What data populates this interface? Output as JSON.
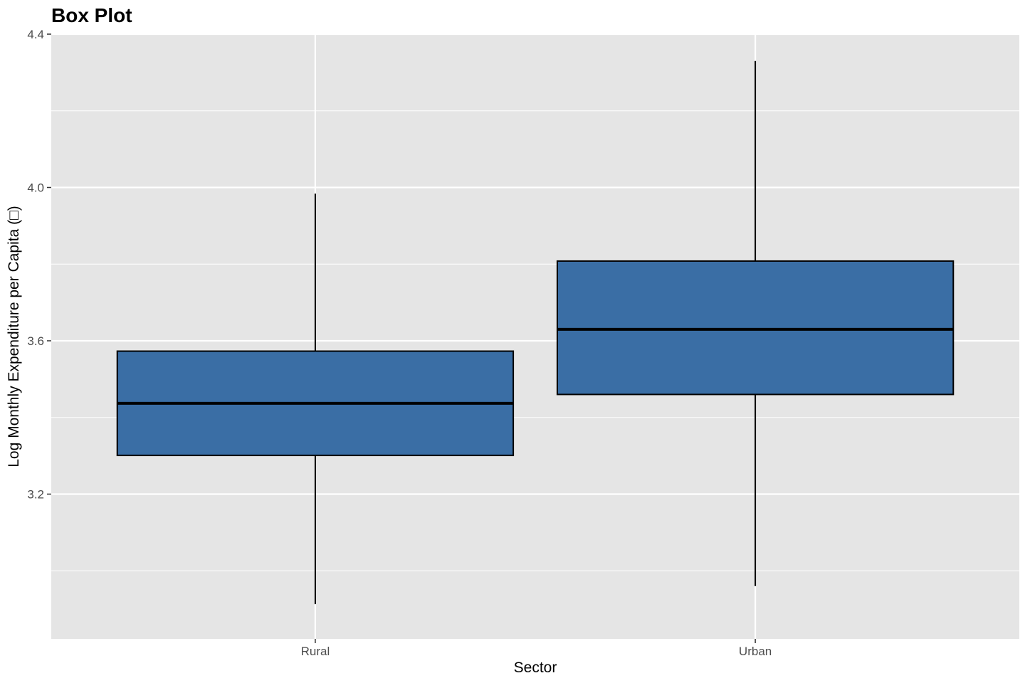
{
  "chart_data": {
    "type": "box",
    "title": "Box Plot",
    "xlabel": "Sector",
    "ylabel": "Log Monthly Expenditure per Capita (□)",
    "categories": [
      "Rural",
      "Urban"
    ],
    "boxes": [
      {
        "category": "Rural",
        "whisker_low": 2.913,
        "q1": 3.301,
        "median": 3.437,
        "q3": 3.573,
        "whisker_high": 3.984
      },
      {
        "category": "Urban",
        "whisker_low": 2.96,
        "q1": 3.46,
        "median": 3.63,
        "q3": 3.808,
        "whisker_high": 4.33
      }
    ],
    "ylim": [
      2.8,
      4.4
    ],
    "y_ticks": [
      3.2,
      3.6,
      4.0,
      4.4
    ],
    "y_tick_labels": [
      "3.2",
      "3.6",
      "4.0",
      "4.4"
    ],
    "grid": true,
    "colors": {
      "panel_background": "#e5e5e5",
      "grid_line": "#ffffff",
      "box_fill": "#3a6ea5",
      "box_outline": "#000000",
      "tick_label": "#4d4d4d"
    }
  }
}
